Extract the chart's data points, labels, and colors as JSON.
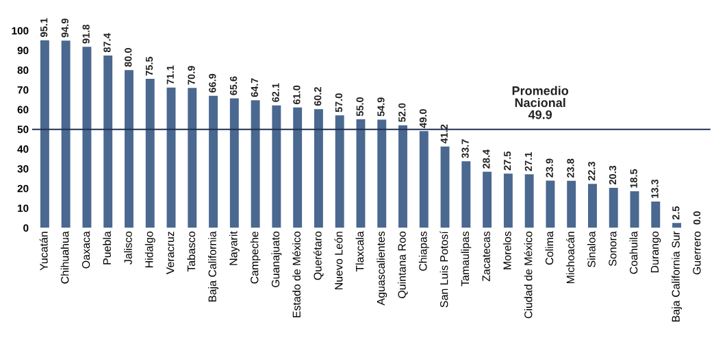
{
  "chart_data": {
    "type": "bar",
    "categories": [
      "Yucatán",
      "Chihuahua",
      "Oaxaca",
      "Puebla",
      "Jalisco",
      "Hidalgo",
      "Veracruz",
      "Tabasco",
      "Baja California",
      "Nayarit",
      "Campeche",
      "Guanajuato",
      "Estado de México",
      "Querétaro",
      "Nuevo León",
      "Tlaxcala",
      "Aguascalientes",
      "Quintana Roo",
      "Chiapas",
      "San Luis Potosí",
      "Tamaulipas",
      "Zacatecas",
      "Morelos",
      "Ciudad de México",
      "Colima",
      "Michoacán",
      "Sinaloa",
      "Sonora",
      "Coahuila",
      "Durango",
      "Baja California Sur",
      "Guerrero"
    ],
    "values": [
      95.1,
      94.9,
      91.8,
      87.4,
      80.0,
      75.5,
      71.1,
      70.9,
      66.9,
      65.6,
      64.7,
      62.1,
      61.0,
      60.2,
      57.0,
      55.0,
      54.9,
      52.0,
      49.0,
      41.2,
      33.7,
      28.4,
      27.5,
      27.1,
      23.9,
      23.8,
      22.3,
      20.3,
      18.5,
      13.3,
      2.5,
      0.0
    ],
    "value_labels": [
      "95.1",
      "94.9",
      "91.8",
      "87.4",
      "80.0",
      "75.5",
      "71.1",
      "70.9",
      "66.9",
      "65.6",
      "64.7",
      "62.1",
      "61.0",
      "60.2",
      "57.0",
      "55.0",
      "54.9",
      "52.0",
      "49.0",
      "41.2",
      "33.7",
      "28.4",
      "27.5",
      "27.1",
      "23.9",
      "23.8",
      "22.3",
      "20.3",
      "18.5",
      "13.3",
      "2.5",
      "0.0"
    ],
    "color": "#4a6890",
    "ylim": [
      0,
      100
    ],
    "yticks": [
      0,
      10,
      20,
      30,
      40,
      50,
      60,
      70,
      80,
      90,
      100
    ],
    "ref_lines": [
      {
        "axis": "y",
        "value": 49.9,
        "label": "Promedio\nNacional\n49.9",
        "color": "#1f3050"
      }
    ],
    "grid": false,
    "legend": false
  }
}
